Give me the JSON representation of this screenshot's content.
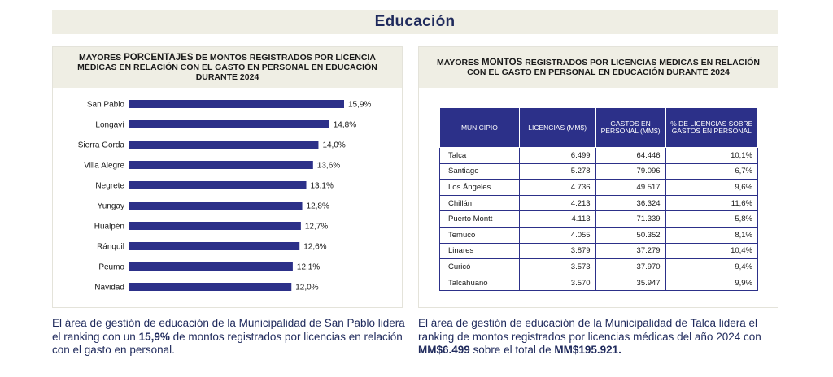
{
  "banner": {
    "title": "Educación"
  },
  "left_panel": {
    "title_part1": "MAYORES ",
    "title_bold": "PORCENTAJES",
    "title_part2": " DE MONTOS REGISTRADOS POR LICENCIA",
    "title_line2": "MÉDICAS EN RELACIÓN CON EL GASTO EN PERSONAL EN EDUCACIÓN",
    "title_line3": "DURANTE 2024"
  },
  "chart_data": {
    "type": "bar",
    "orientation": "horizontal",
    "categories": [
      "San Pablo",
      "Longaví",
      "Sierra Gorda",
      "Villa Alegre",
      "Negrete",
      "Yungay",
      "Hualpén",
      "Ránquil",
      "Peumo",
      "Navidad"
    ],
    "values": [
      15.9,
      14.8,
      14.0,
      13.6,
      13.1,
      12.8,
      12.7,
      12.6,
      12.1,
      12.0
    ],
    "value_labels": [
      "15,9%",
      "14,8%",
      "14,0%",
      "13,6%",
      "13,1%",
      "12,8%",
      "12,7%",
      "12,6%",
      "12,1%",
      "12,0%"
    ],
    "xlim": [
      0,
      15.9
    ],
    "bar_color": "#2c3089",
    "grid": false
  },
  "right_panel": {
    "title_part1": "MAYORES ",
    "title_bold": "MONTOS",
    "title_part2": " REGISTRADOS POR LICENCIAS MÉDICAS EN RELACIÓN",
    "title_line2": "CON EL GASTO EN PERSONAL EN EDUCACIÓN DURANTE 2024"
  },
  "table": {
    "headers": [
      "MUNICIPIO",
      "LICENCIAS (MM$)",
      "GASTOS EN PERSONAL (MM$)",
      "% DE LICENCIAS SOBRE GASTOS EN PERSONAL"
    ],
    "rows": [
      [
        "Talca",
        "6.499",
        "64.446",
        "10,1%"
      ],
      [
        "Santiago",
        "5.278",
        "79.096",
        "6,7%"
      ],
      [
        "Los Ángeles",
        "4.736",
        "49.517",
        "9,6%"
      ],
      [
        "Chillán",
        "4.213",
        "36.324",
        "11,6%"
      ],
      [
        "Puerto Montt",
        "4.113",
        "71.339",
        "5,8%"
      ],
      [
        "Temuco",
        "4.055",
        "50.352",
        "8,1%"
      ],
      [
        "Linares",
        "3.879",
        "37.279",
        "10,4%"
      ],
      [
        "Curicó",
        "3.573",
        "37.970",
        "9,4%"
      ],
      [
        "Talcahuano",
        "3.570",
        "35.947",
        "9,9%"
      ]
    ],
    "header_color": "#2c3089"
  },
  "left_caption": {
    "part1": "El área de gestión de educación de la Municipalidad de San Pablo lidera el ranking con un ",
    "bold": "15,9%",
    "part2": " de montos registrados por licencias en relación con el gasto en personal."
  },
  "right_caption": {
    "part1": "El área de gestión de educación de la Municipalidad de Talca lidera el ranking de montos registrados por licencias médicas del año 2024 con ",
    "bold1": "MM$6.499",
    "part2": " sobre el total de ",
    "bold2": "MM$195.921."
  }
}
